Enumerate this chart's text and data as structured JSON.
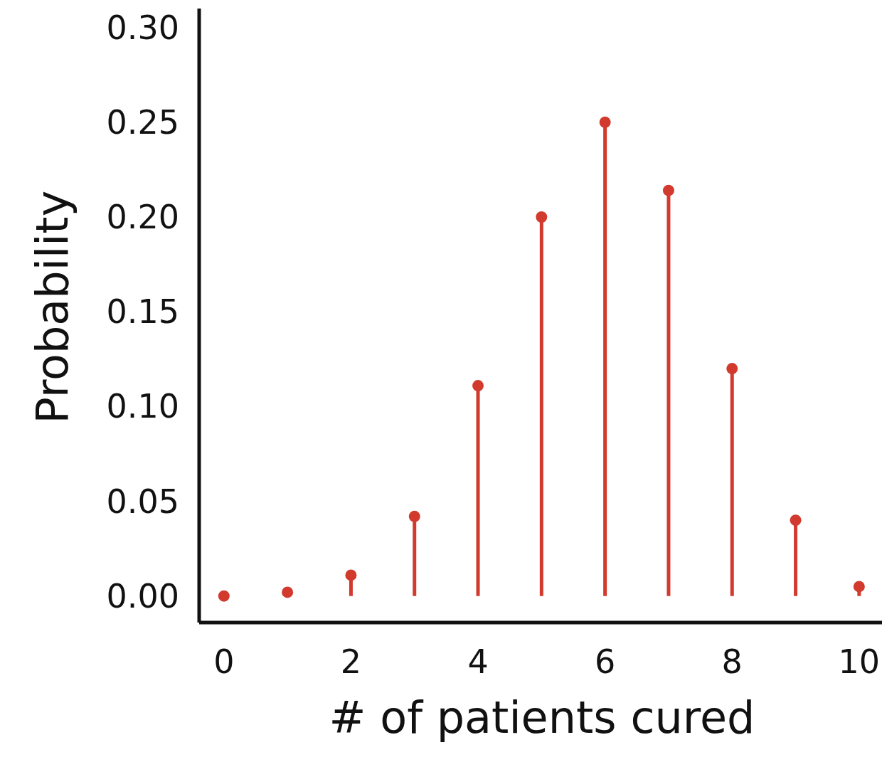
{
  "chart_data": {
    "type": "lollipop",
    "xlabel": "# of patients cured",
    "ylabel": "Probability",
    "x": [
      0,
      1,
      2,
      3,
      4,
      5,
      6,
      7,
      8,
      9,
      10
    ],
    "values": [
      0.0,
      0.002,
      0.011,
      0.042,
      0.111,
      0.2,
      0.25,
      0.214,
      0.12,
      0.04,
      0.005
    ],
    "color": "#d23a2e",
    "marker": "circle",
    "xlim": [
      -0.39,
      10.36
    ],
    "xticks": [
      0,
      2,
      4,
      6,
      8,
      10
    ],
    "ylim": [
      -0.014,
      0.31
    ],
    "yticks": [
      {
        "value": 0,
        "label": "0.00"
      },
      {
        "value": 0.05,
        "label": "0.05"
      },
      {
        "value": 0.1,
        "label": "0.10"
      },
      {
        "value": 0.15,
        "label": "0.15"
      },
      {
        "value": 0.2,
        "label": "0.20"
      },
      {
        "value": 0.25,
        "label": "0.25"
      },
      {
        "value": 0.3,
        "label": "0.30"
      }
    ]
  }
}
